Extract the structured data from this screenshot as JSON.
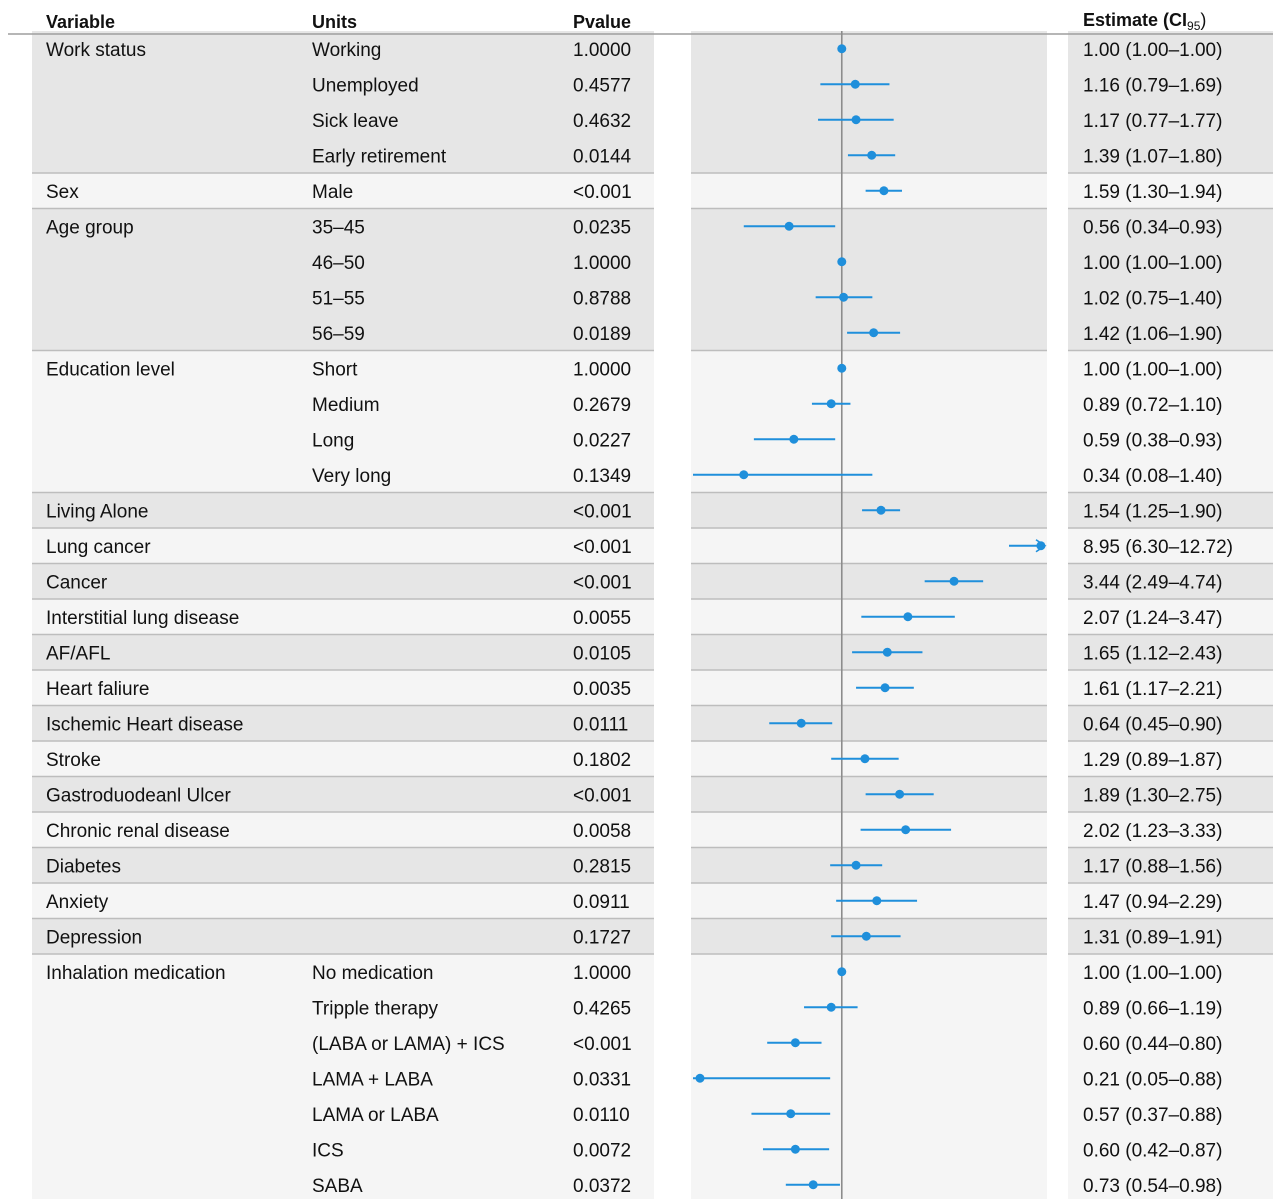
{
  "headers": {
    "variable": "Variable",
    "units": "Units",
    "pvalue": "Pvalue",
    "estimate_main": "Estimate (",
    "estimate_ci": "CI",
    "estimate_sub": "95",
    "estimate_close": ")"
  },
  "colors": {
    "point": "#1f8fdb",
    "band_dark": "#e6e6e6",
    "band_light": "#f5f5f5",
    "separator": "#bdbdbd",
    "refline": "#8c8c8c"
  },
  "chart_data": {
    "type": "forest",
    "reference_value": 1.0,
    "x_scale": "log",
    "xlim": [
      0.21,
      6.3
    ],
    "rows": [
      {
        "variable": "Work status",
        "unit": "Working",
        "pvalue": "1.0000",
        "est": 1.0,
        "lo": 1.0,
        "hi": 1.0,
        "label": "1.00 (1.00–1.00)",
        "band": 0,
        "sep": false
      },
      {
        "variable": "",
        "unit": "Unemployed",
        "pvalue": "0.4577",
        "est": 1.16,
        "lo": 0.79,
        "hi": 1.69,
        "label": "1.16 (0.79–1.69)",
        "band": 0,
        "sep": false
      },
      {
        "variable": "",
        "unit": "Sick leave",
        "pvalue": "0.4632",
        "est": 1.17,
        "lo": 0.77,
        "hi": 1.77,
        "label": "1.17 (0.77–1.77)",
        "band": 0,
        "sep": false
      },
      {
        "variable": "",
        "unit": "Early retirement",
        "pvalue": "0.0144",
        "est": 1.39,
        "lo": 1.07,
        "hi": 1.8,
        "label": "1.39 (1.07–1.80)",
        "band": 0,
        "sep": false
      },
      {
        "variable": "Sex",
        "unit": "Male",
        "pvalue": "<0.001",
        "est": 1.59,
        "lo": 1.3,
        "hi": 1.94,
        "label": "1.59 (1.30–1.94)",
        "band": 1,
        "sep": true
      },
      {
        "variable": "Age group",
        "unit": "35–45",
        "pvalue": "0.0235",
        "est": 0.56,
        "lo": 0.34,
        "hi": 0.93,
        "label": "0.56 (0.34–0.93)",
        "band": 0,
        "sep": true
      },
      {
        "variable": "",
        "unit": "46–50",
        "pvalue": "1.0000",
        "est": 1.0,
        "lo": 1.0,
        "hi": 1.0,
        "label": "1.00 (1.00–1.00)",
        "band": 0,
        "sep": false
      },
      {
        "variable": "",
        "unit": "51–55",
        "pvalue": "0.8788",
        "est": 1.02,
        "lo": 0.75,
        "hi": 1.4,
        "label": "1.02 (0.75–1.40)",
        "band": 0,
        "sep": false
      },
      {
        "variable": "",
        "unit": "56–59",
        "pvalue": "0.0189",
        "est": 1.42,
        "lo": 1.06,
        "hi": 1.9,
        "label": "1.42 (1.06–1.90)",
        "band": 0,
        "sep": false
      },
      {
        "variable": "Education level",
        "unit": "Short",
        "pvalue": "1.0000",
        "est": 1.0,
        "lo": 1.0,
        "hi": 1.0,
        "label": "1.00 (1.00–1.00)",
        "band": 1,
        "sep": true
      },
      {
        "variable": "",
        "unit": "Medium",
        "pvalue": "0.2679",
        "est": 0.89,
        "lo": 0.72,
        "hi": 1.1,
        "label": "0.89 (0.72–1.10)",
        "band": 1,
        "sep": false
      },
      {
        "variable": "",
        "unit": "Long",
        "pvalue": "0.0227",
        "est": 0.59,
        "lo": 0.38,
        "hi": 0.93,
        "label": "0.59 (0.38–0.93)",
        "band": 1,
        "sep": false
      },
      {
        "variable": "",
        "unit": "Very long",
        "pvalue": "0.1349",
        "est": 0.34,
        "lo": 0.08,
        "hi": 1.4,
        "label": "0.34 (0.08–1.40)",
        "band": 1,
        "sep": false
      },
      {
        "variable": "Living Alone",
        "unit": "",
        "pvalue": "<0.001",
        "est": 1.54,
        "lo": 1.25,
        "hi": 1.9,
        "label": "1.54 (1.25–1.90)",
        "band": 0,
        "sep": true
      },
      {
        "variable": "Lung cancer",
        "unit": "",
        "pvalue": "<0.001",
        "est": 8.95,
        "lo": 6.3,
        "hi": 12.72,
        "label": "8.95 (6.30–12.72)",
        "band": 1,
        "sep": true
      },
      {
        "variable": "Cancer",
        "unit": "",
        "pvalue": "<0.001",
        "est": 3.44,
        "lo": 2.49,
        "hi": 4.74,
        "label": "3.44 (2.49–4.74)",
        "band": 0,
        "sep": true
      },
      {
        "variable": "Interstitial lung disease",
        "unit": "",
        "pvalue": "0.0055",
        "est": 2.07,
        "lo": 1.24,
        "hi": 3.47,
        "label": "2.07 (1.24–3.47)",
        "band": 1,
        "sep": true
      },
      {
        "variable": "AF/AFL",
        "unit": "",
        "pvalue": "0.0105",
        "est": 1.65,
        "lo": 1.12,
        "hi": 2.43,
        "label": "1.65 (1.12–2.43)",
        "band": 0,
        "sep": true
      },
      {
        "variable": "Heart faliure",
        "unit": "",
        "pvalue": "0.0035",
        "est": 1.61,
        "lo": 1.17,
        "hi": 2.21,
        "label": "1.61 (1.17–2.21)",
        "band": 1,
        "sep": true
      },
      {
        "variable": "Ischemic Heart disease",
        "unit": "",
        "pvalue": "0.0111",
        "est": 0.64,
        "lo": 0.45,
        "hi": 0.9,
        "label": "0.64 (0.45–0.90)",
        "band": 0,
        "sep": true
      },
      {
        "variable": "Stroke",
        "unit": "",
        "pvalue": "0.1802",
        "est": 1.29,
        "lo": 0.89,
        "hi": 1.87,
        "label": "1.29 (0.89–1.87)",
        "band": 1,
        "sep": true
      },
      {
        "variable": "Gastroduodeanl Ulcer",
        "unit": "",
        "pvalue": "<0.001",
        "est": 1.89,
        "lo": 1.3,
        "hi": 2.75,
        "label": "1.89 (1.30–2.75)",
        "band": 0,
        "sep": true
      },
      {
        "variable": "Chronic renal disease",
        "unit": "",
        "pvalue": "0.0058",
        "est": 2.02,
        "lo": 1.23,
        "hi": 3.33,
        "label": "2.02 (1.23–3.33)",
        "band": 1,
        "sep": true
      },
      {
        "variable": "Diabetes",
        "unit": "",
        "pvalue": "0.2815",
        "est": 1.17,
        "lo": 0.88,
        "hi": 1.56,
        "label": "1.17 (0.88–1.56)",
        "band": 0,
        "sep": true
      },
      {
        "variable": "Anxiety",
        "unit": "",
        "pvalue": "0.0911",
        "est": 1.47,
        "lo": 0.94,
        "hi": 2.29,
        "label": "1.47 (0.94–2.29)",
        "band": 1,
        "sep": true
      },
      {
        "variable": "Depression",
        "unit": "",
        "pvalue": "0.1727",
        "est": 1.31,
        "lo": 0.89,
        "hi": 1.91,
        "label": "1.31 (0.89–1.91)",
        "band": 0,
        "sep": true
      },
      {
        "variable": "Inhalation medication",
        "unit": "No medication",
        "pvalue": "1.0000",
        "est": 1.0,
        "lo": 1.0,
        "hi": 1.0,
        "label": "1.00 (1.00–1.00)",
        "band": 1,
        "sep": true
      },
      {
        "variable": "",
        "unit": "Tripple therapy",
        "pvalue": "0.4265",
        "est": 0.89,
        "lo": 0.66,
        "hi": 1.19,
        "label": "0.89 (0.66–1.19)",
        "band": 1,
        "sep": false
      },
      {
        "variable": "",
        "unit": "(LABA or LAMA) + ICS",
        "pvalue": "<0.001",
        "est": 0.6,
        "lo": 0.44,
        "hi": 0.8,
        "label": "0.60 (0.44–0.80)",
        "band": 1,
        "sep": false
      },
      {
        "variable": "",
        "unit": "LAMA + LABA",
        "pvalue": "0.0331",
        "est": 0.21,
        "lo": 0.05,
        "hi": 0.88,
        "label": "0.21 (0.05–0.88)",
        "band": 1,
        "sep": false
      },
      {
        "variable": "",
        "unit": "LAMA or LABA",
        "pvalue": "0.0110",
        "est": 0.57,
        "lo": 0.37,
        "hi": 0.88,
        "label": "0.57 (0.37–0.88)",
        "band": 1,
        "sep": false
      },
      {
        "variable": "",
        "unit": "ICS",
        "pvalue": "0.0072",
        "est": 0.6,
        "lo": 0.42,
        "hi": 0.87,
        "label": "0.60 (0.42–0.87)",
        "band": 1,
        "sep": false
      },
      {
        "variable": "",
        "unit": "SABA",
        "pvalue": "0.0372",
        "est": 0.73,
        "lo": 0.54,
        "hi": 0.98,
        "label": "0.73 (0.54–0.98)",
        "band": 1,
        "sep": false
      }
    ]
  }
}
